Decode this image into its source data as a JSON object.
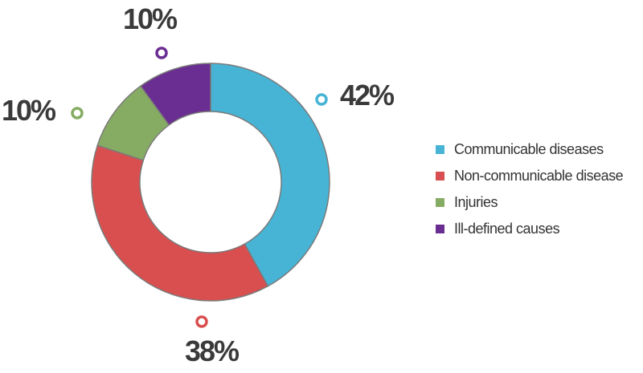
{
  "chart_data": {
    "type": "pie",
    "variant": "donut",
    "slices": [
      {
        "label": "Communicable diseases",
        "value": 42,
        "display": "42%",
        "color": "#47b4d5"
      },
      {
        "label": "Non-communicable disease",
        "value": 38,
        "display": "38%",
        "color": "#d94f4f"
      },
      {
        "label": "Injuries",
        "value": 10,
        "display": "10%",
        "color": "#86ac63"
      },
      {
        "label": "Ill-defined causes",
        "value": 10,
        "display": "10%",
        "color": "#6a2d91"
      }
    ],
    "legend_position": "right",
    "title": ""
  }
}
